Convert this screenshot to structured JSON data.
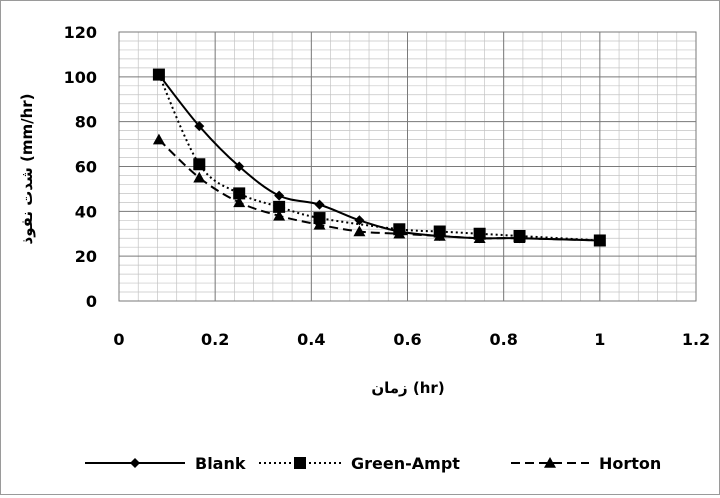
{
  "chart_data": {
    "type": "line",
    "xlabel": "زمان (hr)",
    "ylabel": "شدت نفوذ (mm/hr)",
    "xlim": [
      0,
      1.2
    ],
    "ylim": [
      0,
      120
    ],
    "x_ticks": [
      0,
      0.2,
      0.4,
      0.6,
      0.8,
      1,
      1.2
    ],
    "x_tick_labels": [
      "0",
      "0.2",
      "0.4",
      "0.6",
      "0.8",
      "1",
      "1.2"
    ],
    "y_ticks": [
      0,
      20,
      40,
      60,
      80,
      100,
      120
    ],
    "y_tick_labels": [
      "0",
      "20",
      "40",
      "60",
      "80",
      "100",
      "120"
    ],
    "grid": true,
    "legend_position": "bottom",
    "series": [
      {
        "name": "Blank",
        "line_style": "solid",
        "marker": "diamond",
        "color": "#000000",
        "x": [
          0.083,
          0.167,
          0.25,
          0.333,
          0.417,
          0.5,
          0.583,
          0.667,
          0.75,
          0.833,
          1.0
        ],
        "y": [
          101,
          78,
          60,
          47,
          43,
          36,
          31,
          29,
          28,
          28,
          27
        ]
      },
      {
        "name": "Green-Ampt",
        "line_style": "dotted",
        "marker": "square",
        "color": "#000000",
        "x": [
          0.083,
          0.167,
          0.25,
          0.333,
          0.417,
          0.583,
          0.667,
          0.75,
          0.833,
          1.0
        ],
        "y": [
          101,
          61,
          48,
          42,
          37,
          32,
          31,
          30,
          29,
          27
        ]
      },
      {
        "name": "Horton",
        "line_style": "dashed",
        "marker": "triangle",
        "color": "#000000",
        "x": [
          0.083,
          0.167,
          0.25,
          0.333,
          0.417,
          0.5,
          0.583,
          0.667,
          0.75,
          0.833,
          1.0
        ],
        "y": [
          72,
          55,
          44,
          38,
          34,
          31,
          30,
          29,
          28,
          28,
          27
        ]
      }
    ]
  }
}
